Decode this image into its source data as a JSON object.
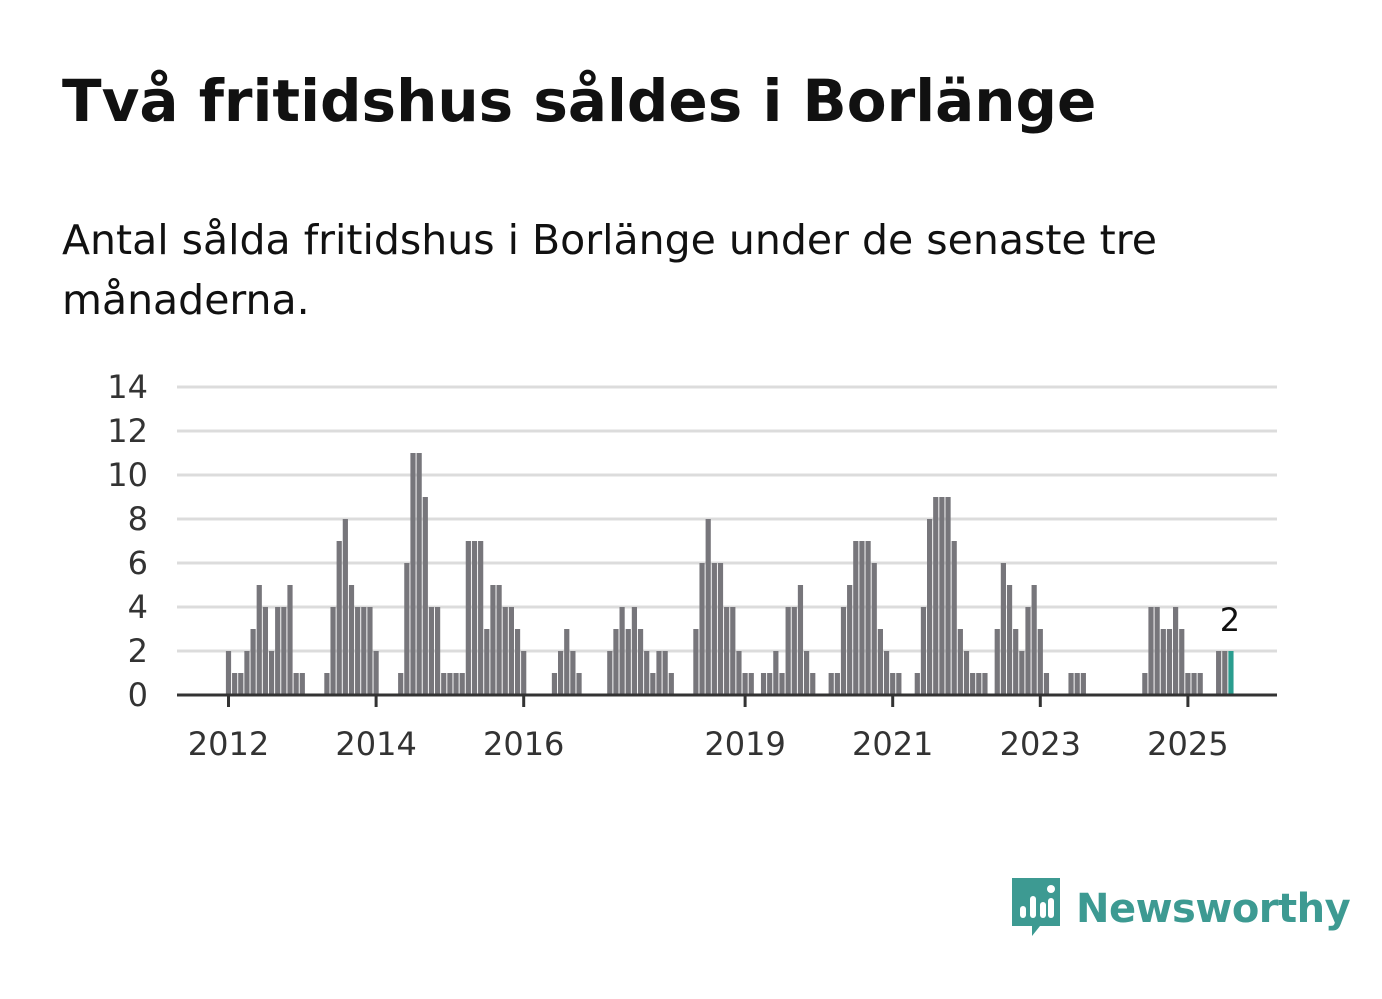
{
  "title": "Två fritidshus såldes i Borlänge",
  "subtitle": "Antal sålda fritidshus i Borlänge under de senaste tre månaderna.",
  "brand": {
    "name": "Newsworthy",
    "icon": "newsworthy-logo-icon",
    "color": "#3d9a92"
  },
  "colors": {
    "bar": "#77767b",
    "highlight": "#2a9d8f",
    "grid": "#dcdcdc",
    "axis": "#333333"
  },
  "chart_data": {
    "type": "bar",
    "ylim": [
      0,
      14
    ],
    "yticks": [
      0,
      2,
      4,
      6,
      8,
      10,
      12,
      14
    ],
    "xticks": [
      "2012",
      "2014",
      "2016",
      "2019",
      "2021",
      "2023",
      "2025"
    ],
    "grid": true,
    "start_month": "2011-04",
    "values": [
      0,
      0,
      0,
      0,
      0,
      0,
      0,
      0,
      0,
      2,
      1,
      1,
      2,
      3,
      5,
      4,
      2,
      4,
      4,
      5,
      1,
      1,
      0,
      0,
      0,
      1,
      4,
      7,
      8,
      5,
      4,
      4,
      4,
      2,
      0,
      0,
      0,
      1,
      6,
      11,
      11,
      9,
      4,
      4,
      1,
      1,
      1,
      1,
      7,
      7,
      7,
      3,
      5,
      5,
      4,
      4,
      3,
      2,
      0,
      0,
      0,
      0,
      1,
      2,
      3,
      2,
      1,
      0,
      0,
      0,
      0,
      2,
      3,
      4,
      3,
      4,
      3,
      2,
      1,
      2,
      2,
      1,
      0,
      0,
      0,
      3,
      6,
      8,
      6,
      6,
      4,
      4,
      2,
      1,
      1,
      0,
      1,
      1,
      2,
      1,
      4,
      4,
      5,
      2,
      1,
      0,
      0,
      1,
      1,
      4,
      5,
      7,
      7,
      7,
      6,
      3,
      2,
      1,
      1,
      0,
      0,
      1,
      4,
      8,
      9,
      9,
      9,
      7,
      3,
      2,
      1,
      1,
      1,
      0,
      3,
      6,
      5,
      3,
      2,
      4,
      5,
      3,
      1,
      0,
      0,
      0,
      1,
      1,
      1,
      0,
      0,
      0,
      0,
      0,
      0,
      0,
      0,
      0,
      1,
      4,
      4,
      3,
      3,
      4,
      3,
      1,
      1,
      1,
      0,
      0,
      2,
      2,
      2
    ],
    "highlight_last": true,
    "annotation": "2"
  }
}
